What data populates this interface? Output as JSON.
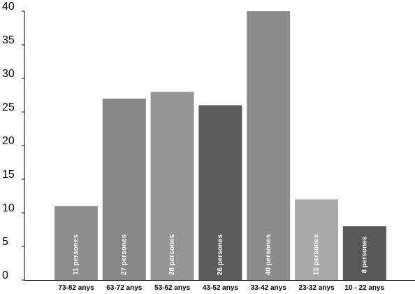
{
  "chart_data": {
    "type": "bar",
    "categories": [
      "73-82 anys",
      "63-72 anys",
      "53-62 anys",
      "43-52 anys",
      "33-42 anys",
      "23-32 anys",
      "10 - 22 anys"
    ],
    "values": [
      11,
      27,
      28,
      26,
      40,
      12,
      8
    ],
    "bar_labels": [
      "11 persones",
      "27 persones",
      "28 persones",
      "26 persones",
      "40 persones",
      "12 persones",
      "8 persones"
    ],
    "bar_colors": [
      "#8e8e8e",
      "#878787",
      "#959595",
      "#5c5c5c",
      "#8c8c8c",
      "#a8a8a8",
      "#575757"
    ],
    "yticks": [
      "0",
      "5",
      "10",
      "15",
      "20",
      "25",
      "30",
      "35",
      "40"
    ],
    "ylim": [
      0,
      40
    ],
    "title": "",
    "xlabel": "",
    "ylabel": "",
    "grid": false,
    "legend": "none"
  }
}
